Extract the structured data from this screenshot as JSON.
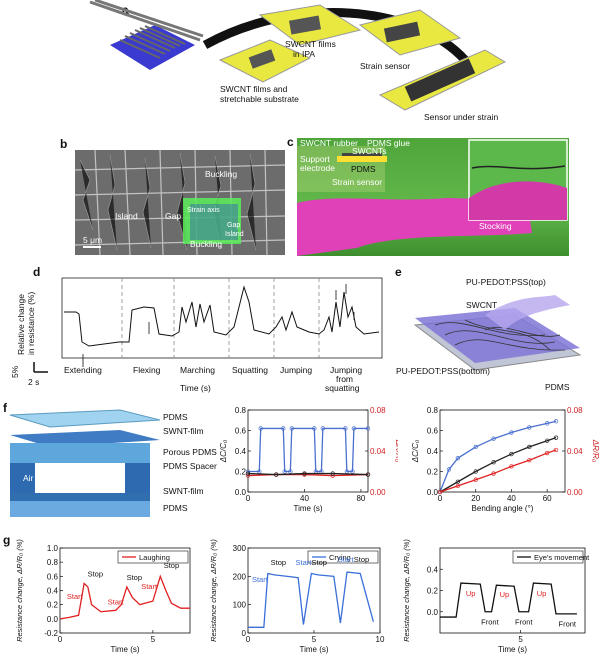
{
  "panels": {
    "a": {
      "label": "a",
      "captions": [
        "SWCNT films",
        "in IPA",
        "SWCNT films and",
        "stretchable substrate",
        "Strain sensor",
        "Sensor under strain"
      ]
    },
    "b": {
      "label": "b",
      "annotations": [
        "Buckling",
        "Island",
        "Gap",
        "Buckling",
        "Strain axis",
        "Island",
        "Gap"
      ],
      "scale_bar": "5 μm"
    },
    "c": {
      "label": "c",
      "annotations": [
        "SWCNT rubber",
        "PDMS glue",
        "SWCNTs",
        "Support",
        "electrode",
        "PDMS",
        "Strain sensor",
        "Stocking"
      ]
    },
    "d": {
      "label": "d",
      "ylabel_lines": [
        "Relative change",
        "in resistance (%)"
      ],
      "xlabel": "Time (s)",
      "scale_y": "5%",
      "scale_x": "2 s",
      "segments": [
        "Extending",
        "Flexing",
        "Marching",
        "Squatting",
        "Jumping",
        "Jumping",
        "from",
        "squatting"
      ]
    },
    "e": {
      "label": "e",
      "annotations": [
        "PU-PEDOT:PSS(top)",
        "SWCNT",
        "PU-PEDOT:PSS(bottom)",
        "PDMS"
      ]
    },
    "f": {
      "label": "f",
      "layers": [
        "PDMS",
        "SWNT-film",
        "Porous PDMS",
        "PDMS Spacer",
        "SWNT-film",
        "PDMS",
        "Air Gap"
      ]
    },
    "g": {
      "label": "g"
    }
  },
  "chart_data": [
    {
      "type": "line",
      "id": "f-time",
      "xlabel": "Time (s)",
      "ylabel": "ΔC/C₀",
      "y2label": "ΔR/R₀",
      "xlim": [
        0,
        85
      ],
      "ylim": [
        0,
        0.8
      ],
      "y2lim": [
        0,
        0.08
      ],
      "xticks": [
        "0",
        "40",
        "80"
      ],
      "yticks": [
        "0.0",
        "0.2",
        "0.4",
        "0.6",
        "0.8"
      ],
      "y2ticks": [
        "0.00",
        "0.04",
        "0.08"
      ],
      "series": [
        {
          "color": "#4a6fcf",
          "x": [
            0,
            8,
            9,
            25,
            26,
            30,
            31,
            47,
            48,
            52,
            53,
            69,
            70,
            74,
            75,
            85
          ],
          "y": [
            0.2,
            0.2,
            0.62,
            0.62,
            0.2,
            0.2,
            0.62,
            0.62,
            0.2,
            0.2,
            0.62,
            0.62,
            0.2,
            0.2,
            0.62,
            0.62
          ]
        },
        {
          "color": "#e02020",
          "x": [
            0,
            20,
            40,
            60,
            85
          ],
          "y": [
            0.16,
            0.17,
            0.17,
            0.16,
            0.17
          ]
        },
        {
          "color": "#222222",
          "x": [
            0,
            20,
            40,
            60,
            85
          ],
          "y": [
            0.18,
            0.17,
            0.18,
            0.18,
            0.17
          ]
        }
      ]
    },
    {
      "type": "line",
      "id": "f-bending",
      "xlabel": "Bending angle (°)",
      "ylabel": "ΔC/C₀",
      "y2label": "ΔR/R₀",
      "xlim": [
        0,
        70
      ],
      "ylim": [
        0,
        0.8
      ],
      "y2lim": [
        0,
        0.08
      ],
      "xticks": [
        "0",
        "20",
        "40",
        "60"
      ],
      "yticks": [
        "0.0",
        "0.2",
        "0.4",
        "0.6",
        "0.8"
      ],
      "y2ticks": [
        "0.00",
        "0.04",
        "0.08"
      ],
      "series": [
        {
          "color": "#4a6fcf",
          "x": [
            0,
            5,
            10,
            20,
            30,
            40,
            50,
            60,
            65
          ],
          "y": [
            0,
            0.22,
            0.33,
            0.44,
            0.52,
            0.58,
            0.63,
            0.67,
            0.69
          ]
        },
        {
          "color": "#222222",
          "x": [
            0,
            10,
            20,
            30,
            40,
            50,
            60,
            65
          ],
          "y": [
            0,
            0.1,
            0.2,
            0.29,
            0.37,
            0.44,
            0.5,
            0.53
          ]
        },
        {
          "color": "#e02020",
          "x": [
            0,
            10,
            20,
            30,
            40,
            50,
            60,
            65
          ],
          "y": [
            0,
            0.06,
            0.12,
            0.18,
            0.25,
            0.31,
            0.38,
            0.41
          ]
        }
      ]
    },
    {
      "type": "line",
      "id": "g-laughing",
      "legend": "Laughing",
      "xlabel": "Time (s)",
      "ylabel": "Resistance change, ΔR/R₀ (%)",
      "xlim": [
        0,
        7
      ],
      "ylim": [
        -0.2,
        1.0
      ],
      "xticks": [
        "0",
        "5"
      ],
      "yticks": [
        "-0.2",
        "0.0",
        "0.2",
        "0.4",
        "0.6",
        "0.8",
        "1.0"
      ],
      "annotations": [
        "Start",
        "Stop",
        "Start",
        "Stop",
        "Start",
        "Stop"
      ],
      "series": [
        {
          "color": "#e02020",
          "x": [
            0,
            0.5,
            1.0,
            1.3,
            1.5,
            1.7,
            2.2,
            3.0,
            3.3,
            3.6,
            3.9,
            4.3,
            5.0,
            5.4,
            5.7,
            6.0,
            6.5,
            7.0
          ],
          "y": [
            0.0,
            0.02,
            0.05,
            0.5,
            0.45,
            0.2,
            0.1,
            0.12,
            0.2,
            0.45,
            0.3,
            0.2,
            0.25,
            0.6,
            0.4,
            0.22,
            0.15,
            0.15
          ]
        }
      ]
    },
    {
      "type": "line",
      "id": "g-crying",
      "legend": "Crying",
      "xlabel": "Time (s)",
      "ylabel": "Resistance change, ΔR/R₀ (%)",
      "xlim": [
        0,
        10
      ],
      "ylim": [
        0,
        300
      ],
      "xticks": [
        "0",
        "5",
        "10"
      ],
      "yticks": [
        "0",
        "100",
        "200",
        "300"
      ],
      "annotations": [
        "Start",
        "Stop",
        "Start",
        "Stop",
        "Start",
        "Stop"
      ],
      "series": [
        {
          "color": "#3a6fd8",
          "x": [
            0,
            1.2,
            1.5,
            2.0,
            3.0,
            3.8,
            4.2,
            4.8,
            5.3,
            6.5,
            7.0,
            7.5,
            8.5,
            9.5
          ],
          "y": [
            20,
            20,
            210,
            205,
            200,
            195,
            30,
            210,
            205,
            200,
            35,
            215,
            210,
            40
          ]
        }
      ]
    },
    {
      "type": "line",
      "id": "g-eye",
      "legend": "Eye's movement",
      "xlabel": "Time (s)",
      "ylabel": "Resistance change, ΔR/R₀ (%)",
      "xlim": [
        0,
        9
      ],
      "ylim": [
        -0.2,
        0.6
      ],
      "xticks": [
        "5"
      ],
      "yticks": [
        "0.0",
        "0.2",
        "0.4"
      ],
      "annotations": [
        "Up",
        "Up",
        "Up",
        "Front",
        "Front",
        "Front"
      ],
      "series": [
        {
          "color": "#111111",
          "x": [
            0,
            1.0,
            1.3,
            2.5,
            2.8,
            3.2,
            3.5,
            4.6,
            4.9,
            5.5,
            5.8,
            6.9,
            7.2,
            8.5
          ],
          "y": [
            -0.05,
            -0.05,
            0.27,
            0.26,
            0.0,
            0.0,
            0.25,
            0.24,
            0.0,
            0.0,
            0.27,
            0.26,
            -0.02,
            -0.02
          ]
        }
      ]
    }
  ]
}
